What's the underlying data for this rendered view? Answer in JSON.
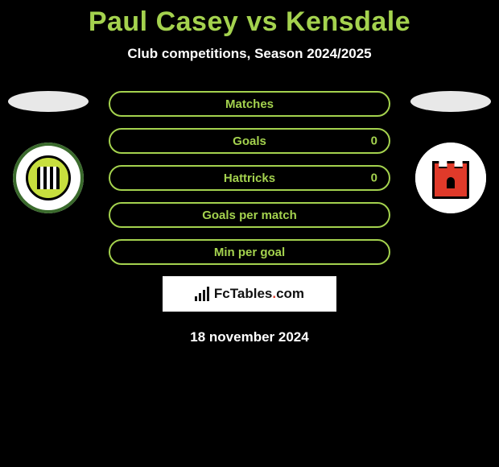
{
  "title": "Paul Casey vs Kensdale",
  "subtitle": "Club competitions, Season 2024/2025",
  "date": "18 november 2024",
  "colors": {
    "accent": "#a4d24e",
    "bar_border": "#a4d24e",
    "bar_label": "#a4d24e",
    "value_text": "#a4d24e",
    "background": "#000000",
    "platform": "#e8e8e8",
    "brand_dot": "#e03a2a"
  },
  "bars": [
    {
      "label": "Matches",
      "left": "",
      "right": ""
    },
    {
      "label": "Goals",
      "left": "",
      "right": "0"
    },
    {
      "label": "Hattricks",
      "left": "",
      "right": "0"
    },
    {
      "label": "Goals per match",
      "left": "",
      "right": ""
    },
    {
      "label": "Min per goal",
      "left": "",
      "right": ""
    }
  ],
  "brand": {
    "text": "FcTables",
    "tld": ".com"
  },
  "badges": {
    "left": {
      "name": "forest-green-rovers"
    },
    "right": {
      "name": "tower-club"
    }
  }
}
